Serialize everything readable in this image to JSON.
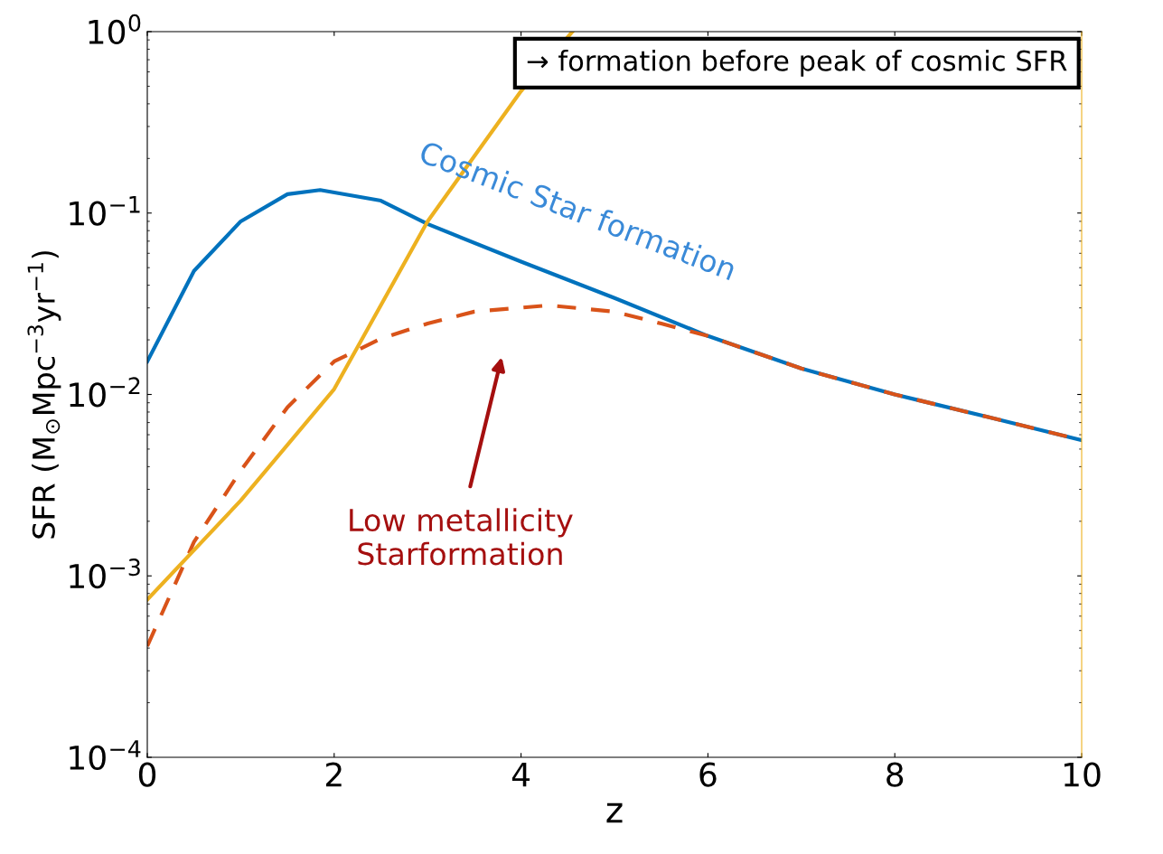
{
  "chart_data": {
    "type": "line",
    "xlabel": "z",
    "ylabel": "SFR (M$_{⊙}$Mpc$^{−3}$yr$^{−1}$)",
    "log": "y",
    "grid": false,
    "legend": false,
    "xlim": [
      0,
      10
    ],
    "xticks": [
      0,
      2,
      4,
      6,
      8,
      10
    ],
    "ylim": [
      0.0001,
      1
    ],
    "yticks": [
      {
        "value": 0.0001,
        "label": "10$^{−4}$"
      },
      {
        "value": 0.001,
        "label": "10$^{−3}$"
      },
      {
        "value": 0.01,
        "label": "10$^{−2}$"
      },
      {
        "value": 0.1,
        "label": "10$^{−1}$"
      },
      {
        "value": 1,
        "label": "10$^{0}$"
      }
    ],
    "series": [
      {
        "name": "Cosmic Star formation",
        "color": "#0072bd",
        "line_style": "solid",
        "x": [
          0,
          0.5,
          1,
          1.5,
          1.85,
          2.5,
          3,
          4,
          5,
          6,
          7,
          8,
          9,
          10
        ],
        "values": [
          0.0152,
          0.048,
          0.09,
          0.127,
          0.134,
          0.117,
          0.087,
          0.054,
          0.034,
          0.021,
          0.0139,
          0.01,
          0.0075,
          0.0056
        ]
      },
      {
        "color": "#d95319",
        "line_style": "dashed",
        "x": [
          0,
          0.5,
          1,
          1.5,
          2,
          2.5,
          3,
          3.5,
          4.3,
          5,
          5.5,
          6,
          7,
          8,
          9,
          10
        ],
        "values": [
          0.00041,
          0.00154,
          0.0038,
          0.0085,
          0.0152,
          0.0203,
          0.0246,
          0.0286,
          0.031,
          0.0286,
          0.0246,
          0.021,
          0.0139,
          0.01,
          0.0075,
          0.0056
        ]
      },
      {
        "color": "#edb120",
        "line_style": "solid",
        "x": [
          0,
          1,
          2,
          3,
          4,
          4.55
        ],
        "values": [
          0.00074,
          0.0026,
          0.0107,
          0.09,
          0.47,
          1.0
        ]
      }
    ],
    "annotations": [
      "→ formation before peak of cosmic SFR",
      "Low metallicity\nStarformation"
    ]
  }
}
